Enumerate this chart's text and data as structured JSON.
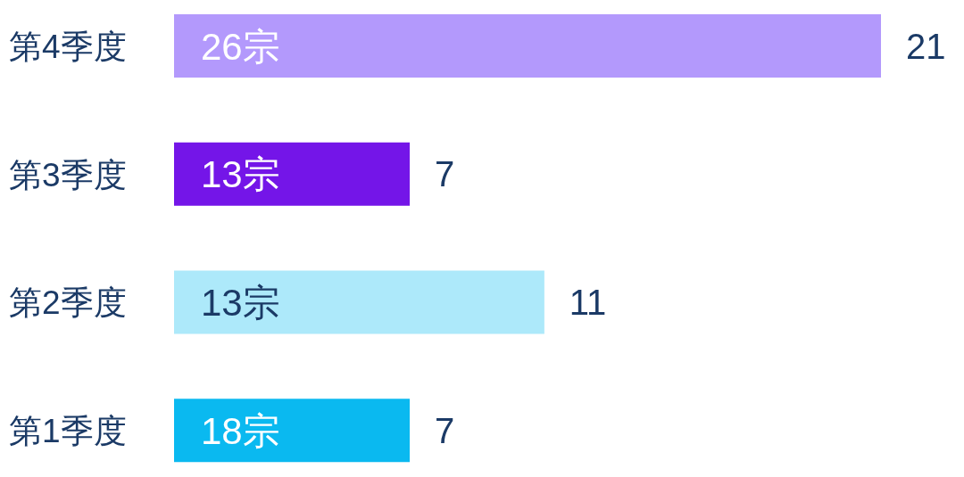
{
  "chart_data": {
    "type": "bar",
    "orientation": "horizontal",
    "categories": [
      "第4季度",
      "第3季度",
      "第2季度",
      "第1季度"
    ],
    "values": [
      21,
      7,
      11,
      7
    ],
    "colors": [
      "#b399fc",
      "#7415e8",
      "#ade9fa",
      "#0ab9f0"
    ],
    "data_labels": true,
    "annotations": [
      "26宗",
      "13宗",
      "13宗",
      "18宗"
    ]
  }
}
